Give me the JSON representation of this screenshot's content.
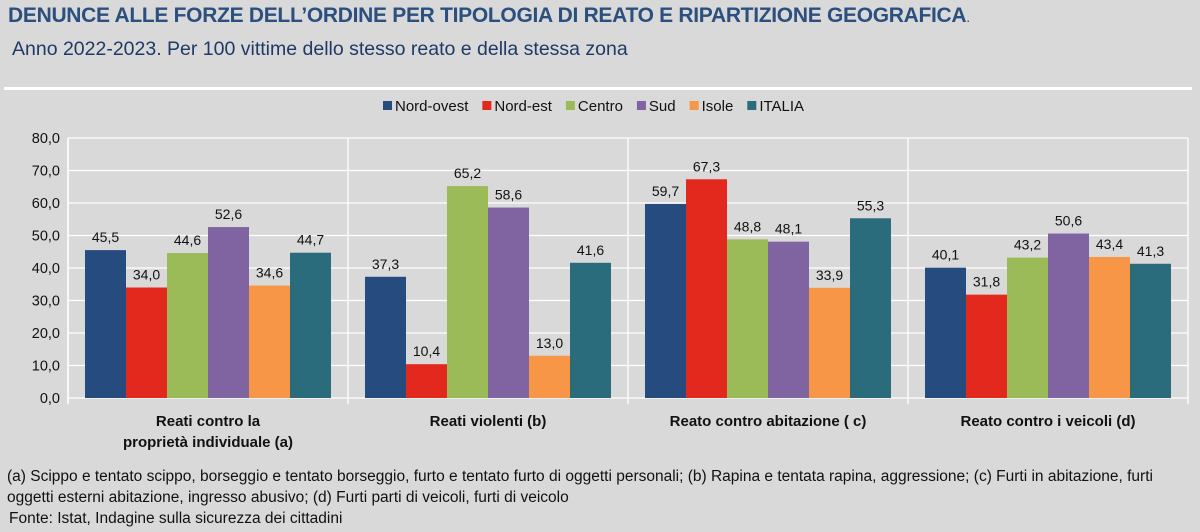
{
  "header": {
    "title": "DENUNCE ALLE FORZE DELL’ORDINE PER TIPOLOGIA DI REATO E RIPARTIZIONE GEOGRAFICA",
    "subtitle": "Anno 2022-2023. Per 100 vittime dello stesso reato e della stessa zona"
  },
  "chart_data": {
    "type": "bar",
    "title": "",
    "xlabel": "",
    "ylabel": "",
    "ylim": [
      0,
      80
    ],
    "yticks": [
      "0,0",
      "10,0",
      "20,0",
      "30,0",
      "40,0",
      "50,0",
      "60,0",
      "70,0",
      "80,0"
    ],
    "grid": true,
    "legend_position": "top",
    "categories": [
      [
        "Reati contro la",
        "proprietà individuale (a)"
      ],
      [
        "Reati violenti (b)"
      ],
      [
        "Reato contro abitazione ( c)"
      ],
      [
        "Reato contro i veicoli (d)"
      ]
    ],
    "series": [
      {
        "name": "Nord-ovest",
        "color": "#264b7f",
        "values": [
          45.5,
          37.3,
          59.7,
          40.1
        ],
        "labels": [
          "45,5",
          "37,3",
          "59,7",
          "40,1"
        ]
      },
      {
        "name": "Nord-est",
        "color": "#e3281d",
        "values": [
          34.0,
          10.4,
          67.3,
          31.8
        ],
        "labels": [
          "34,0",
          "10,4",
          "67,3",
          "31,8"
        ]
      },
      {
        "name": "Centro",
        "color": "#9bbb59",
        "values": [
          44.6,
          65.2,
          48.8,
          43.2
        ],
        "labels": [
          "44,6",
          "65,2",
          "48,8",
          "43,2"
        ]
      },
      {
        "name": "Sud",
        "color": "#8064a2",
        "values": [
          52.6,
          58.6,
          48.1,
          50.6
        ],
        "labels": [
          "52,6",
          "58,6",
          "48,1",
          "50,6"
        ]
      },
      {
        "name": "Isole",
        "color": "#f79646",
        "values": [
          34.6,
          13.0,
          33.9,
          43.4
        ],
        "labels": [
          "34,6",
          "13,0",
          "33,9",
          "43,4"
        ]
      },
      {
        "name": "ITALIA",
        "color": "#2a6c7c",
        "values": [
          44.7,
          41.6,
          55.3,
          41.3
        ],
        "labels": [
          "44,7",
          "41,6",
          "55,3",
          "41,3"
        ]
      }
    ]
  },
  "footer": {
    "note": "(a) Scippo e tentato scippo, borseggio e tentato borseggio, furto e tentato furto di oggetti personali; (b) Rapina e tentata rapina, aggressione; (c) Furti in abitazione, furti oggetti esterni abitazione, ingresso abusivo; (d) Furti parti di veicoli, furti di veicolo",
    "source": "Fonte: Istat, Indagine sulla sicurezza dei cittadini"
  }
}
